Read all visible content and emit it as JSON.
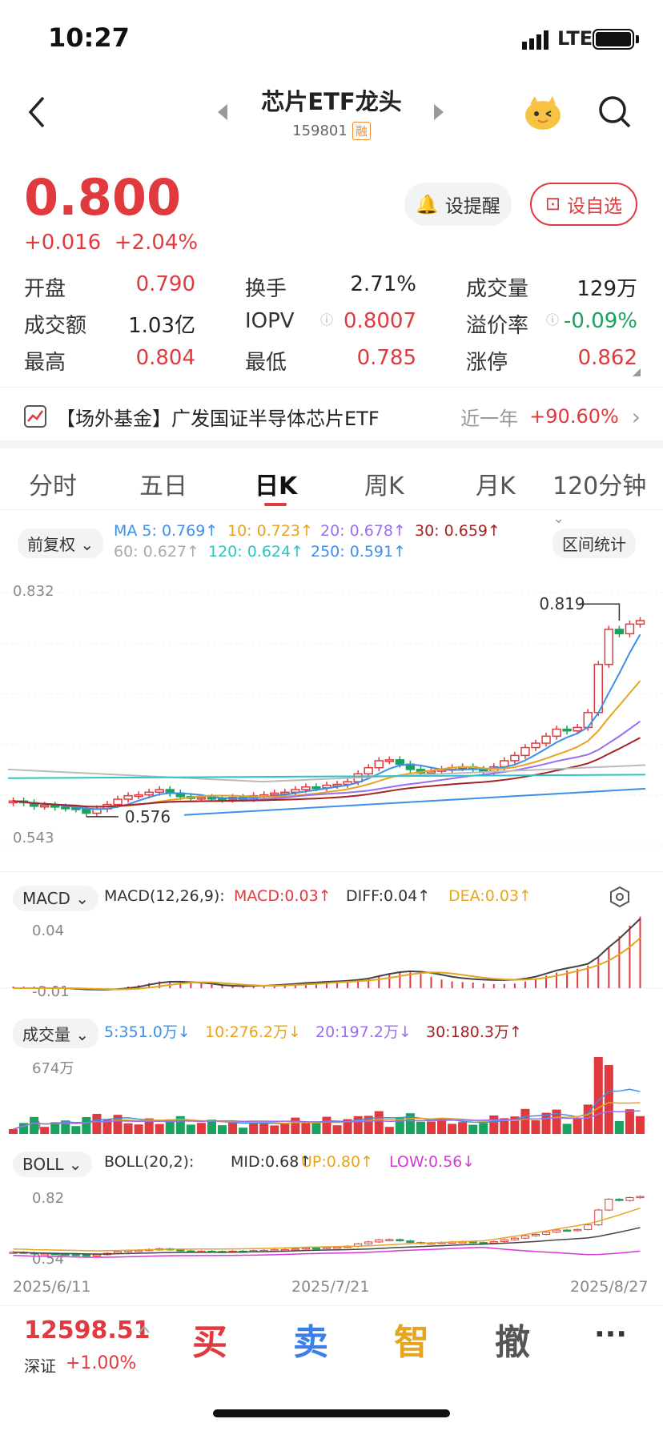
{
  "status": {
    "time": "10:27",
    "network": "LTE"
  },
  "header": {
    "title": "芯片ETF龙头",
    "code": "159801",
    "badge": "融"
  },
  "quote": {
    "price": "0.800",
    "change": "+0.016",
    "change_pct": "+2.04%",
    "alert_btn": "设提醒",
    "watch_btn": "设自选",
    "rows": [
      [
        {
          "l": "开盘",
          "v": "0.790",
          "c": "red"
        },
        {
          "l": "换手",
          "v": "2.71%",
          "c": "black"
        },
        {
          "l": "成交量",
          "v": "129万",
          "c": "black"
        }
      ],
      [
        {
          "l": "成交额",
          "v": "1.03亿",
          "c": "black"
        },
        {
          "l": "IOPV",
          "v": "0.8007",
          "c": "red"
        },
        {
          "l": "溢价率",
          "v": "-0.09%",
          "c": "green"
        }
      ],
      [
        {
          "l": "最高",
          "v": "0.804",
          "c": "red"
        },
        {
          "l": "最低",
          "v": "0.785",
          "c": "red"
        },
        {
          "l": "涨停",
          "v": "0.862",
          "c": "red"
        }
      ]
    ]
  },
  "fund": {
    "name": "【场外基金】广发国证半导体芯片ETF",
    "period": "近一年",
    "ret": "+90.60%"
  },
  "tabs": [
    "分时",
    "五日",
    "日K",
    "周K",
    "月K",
    "120分钟"
  ],
  "kline": {
    "adjust": "前复权",
    "ma5": "MA 5: 0.769↑",
    "ma10": "10: 0.723↑",
    "ma20": "20: 0.678↑",
    "ma30": "30: 0.659↑",
    "ma60": "60: 0.627↑",
    "ma120": "120: 0.624↑",
    "ma250": "250: 0.591↑",
    "stats": "区间统计",
    "ymax": "0.832",
    "ymin": "0.543",
    "hi": "0.819",
    "lo": "0.576"
  },
  "macd": {
    "name": "MACD",
    "params": "MACD(12,26,9):",
    "macd": "MACD:0.03↑",
    "diff": "DIFF:0.04↑",
    "dea": "DEA:0.03↑",
    "top": "0.04",
    "bot": "-0.01"
  },
  "vol": {
    "name": "成交量",
    "v5": "5:351.0万↓",
    "v10": "10:276.2万↓",
    "v20": "20:197.2万↓",
    "v30": "30:180.3万↑",
    "top": "674万",
    "bot": "0"
  },
  "boll": {
    "name": "BOLL",
    "params": "BOLL(20,2):",
    "mid": "MID:0.68↑",
    "up": "UP:0.80↑",
    "low": "LOW:0.56↓",
    "top": "0.82",
    "bot": "0.54"
  },
  "dates": [
    "2025/6/11",
    "2025/7/21",
    "2025/8/27"
  ],
  "bottom": {
    "index": "12598.51",
    "index_name": "深证",
    "index_chg": "+1.00%",
    "buy": "买",
    "sell": "卖",
    "smart": "智",
    "cancel": "撤",
    "more": "···"
  },
  "chart_data": {
    "type": "candlestick",
    "title": "芯片ETF龙头 日K",
    "x_start": "2025/6/11",
    "x_end": "2025/8/27",
    "y_range": [
      0.543,
      0.832
    ],
    "high_label": 0.819,
    "low_label": 0.576,
    "closes": [
      0.594,
      0.592,
      0.588,
      0.589,
      0.587,
      0.586,
      0.585,
      0.58,
      0.585,
      0.59,
      0.596,
      0.6,
      0.601,
      0.604,
      0.607,
      0.603,
      0.599,
      0.597,
      0.598,
      0.597,
      0.596,
      0.598,
      0.597,
      0.6,
      0.601,
      0.603,
      0.604,
      0.607,
      0.61,
      0.609,
      0.612,
      0.613,
      0.616,
      0.625,
      0.632,
      0.64,
      0.641,
      0.636,
      0.63,
      0.626,
      0.628,
      0.63,
      0.632,
      0.633,
      0.63,
      0.628,
      0.633,
      0.64,
      0.646,
      0.655,
      0.66,
      0.668,
      0.676,
      0.674,
      0.678,
      0.695,
      0.75,
      0.79,
      0.785,
      0.796,
      0.8
    ]
  }
}
